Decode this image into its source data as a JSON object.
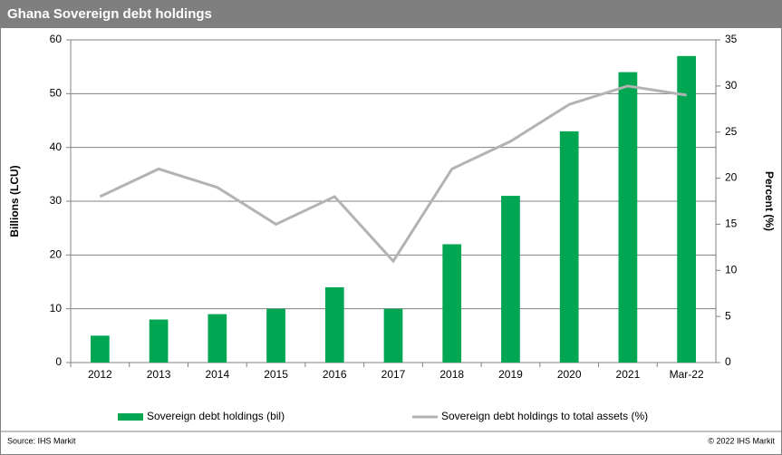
{
  "chart_data": {
    "type": "bar",
    "title": "Ghana Sovereign debt holdings",
    "categories": [
      "2012",
      "2013",
      "2014",
      "2015",
      "2016",
      "2017",
      "2018",
      "2019",
      "2020",
      "2021",
      "Mar-22"
    ],
    "series": [
      {
        "name": "Sovereign debt holdings (bil)",
        "type": "bar",
        "color": "#00a651",
        "values": [
          5,
          8,
          9,
          10,
          14,
          10,
          22,
          31,
          43,
          54,
          57
        ]
      },
      {
        "name": "Sovereign debt holdings to total assets (%)",
        "type": "line",
        "axis": "y2",
        "color": "#b3b3b3",
        "values": [
          18,
          21,
          19,
          15,
          18,
          11,
          21,
          24,
          28,
          30,
          29
        ]
      }
    ],
    "ylabel": "Billions (LCU)",
    "y2label": "Percent (%)",
    "ylim": [
      0,
      60
    ],
    "yticks": [
      0,
      10,
      20,
      30,
      40,
      50,
      60
    ],
    "y2lim": [
      0,
      35
    ],
    "y2ticks": [
      0,
      5,
      10,
      15,
      20,
      25,
      30,
      35
    ],
    "grid": true,
    "legend": "bottom",
    "source": "Source: IHS Markit",
    "copyright": "© 2022 IHS Markit"
  }
}
